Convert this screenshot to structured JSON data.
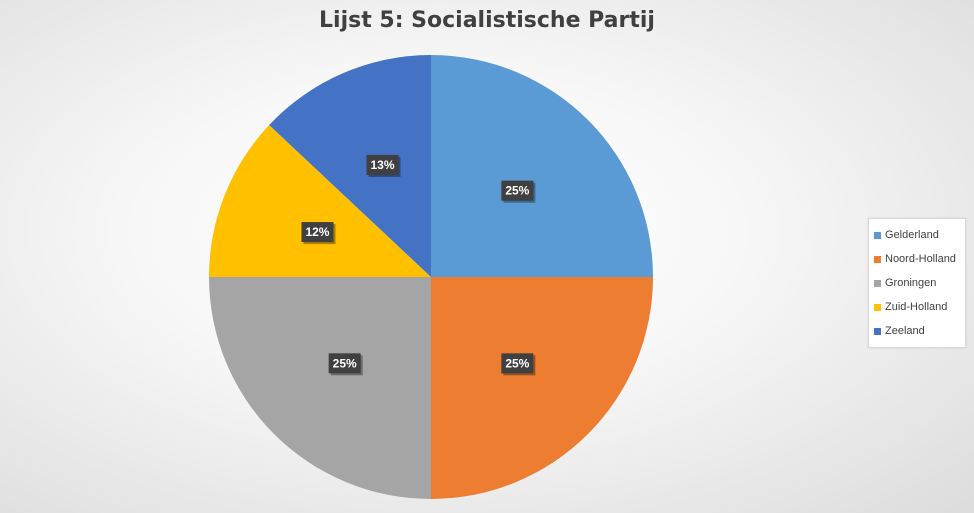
{
  "chart_data": {
    "type": "pie",
    "title": "Lijst 5: Socialistische Partij",
    "categories": [
      "Gelderland",
      "Noord-Holland",
      "Groningen",
      "Zuid-Holland",
      "Zeeland"
    ],
    "values": [
      25,
      25,
      25,
      12,
      13
    ],
    "data_labels": [
      "25%",
      "25%",
      "25%",
      "12%",
      "13%"
    ],
    "colors": [
      "#5B9BD5",
      "#ED7D31",
      "#A5A5A5",
      "#FFC000",
      "#4472C4"
    ],
    "legend_position": "right"
  }
}
